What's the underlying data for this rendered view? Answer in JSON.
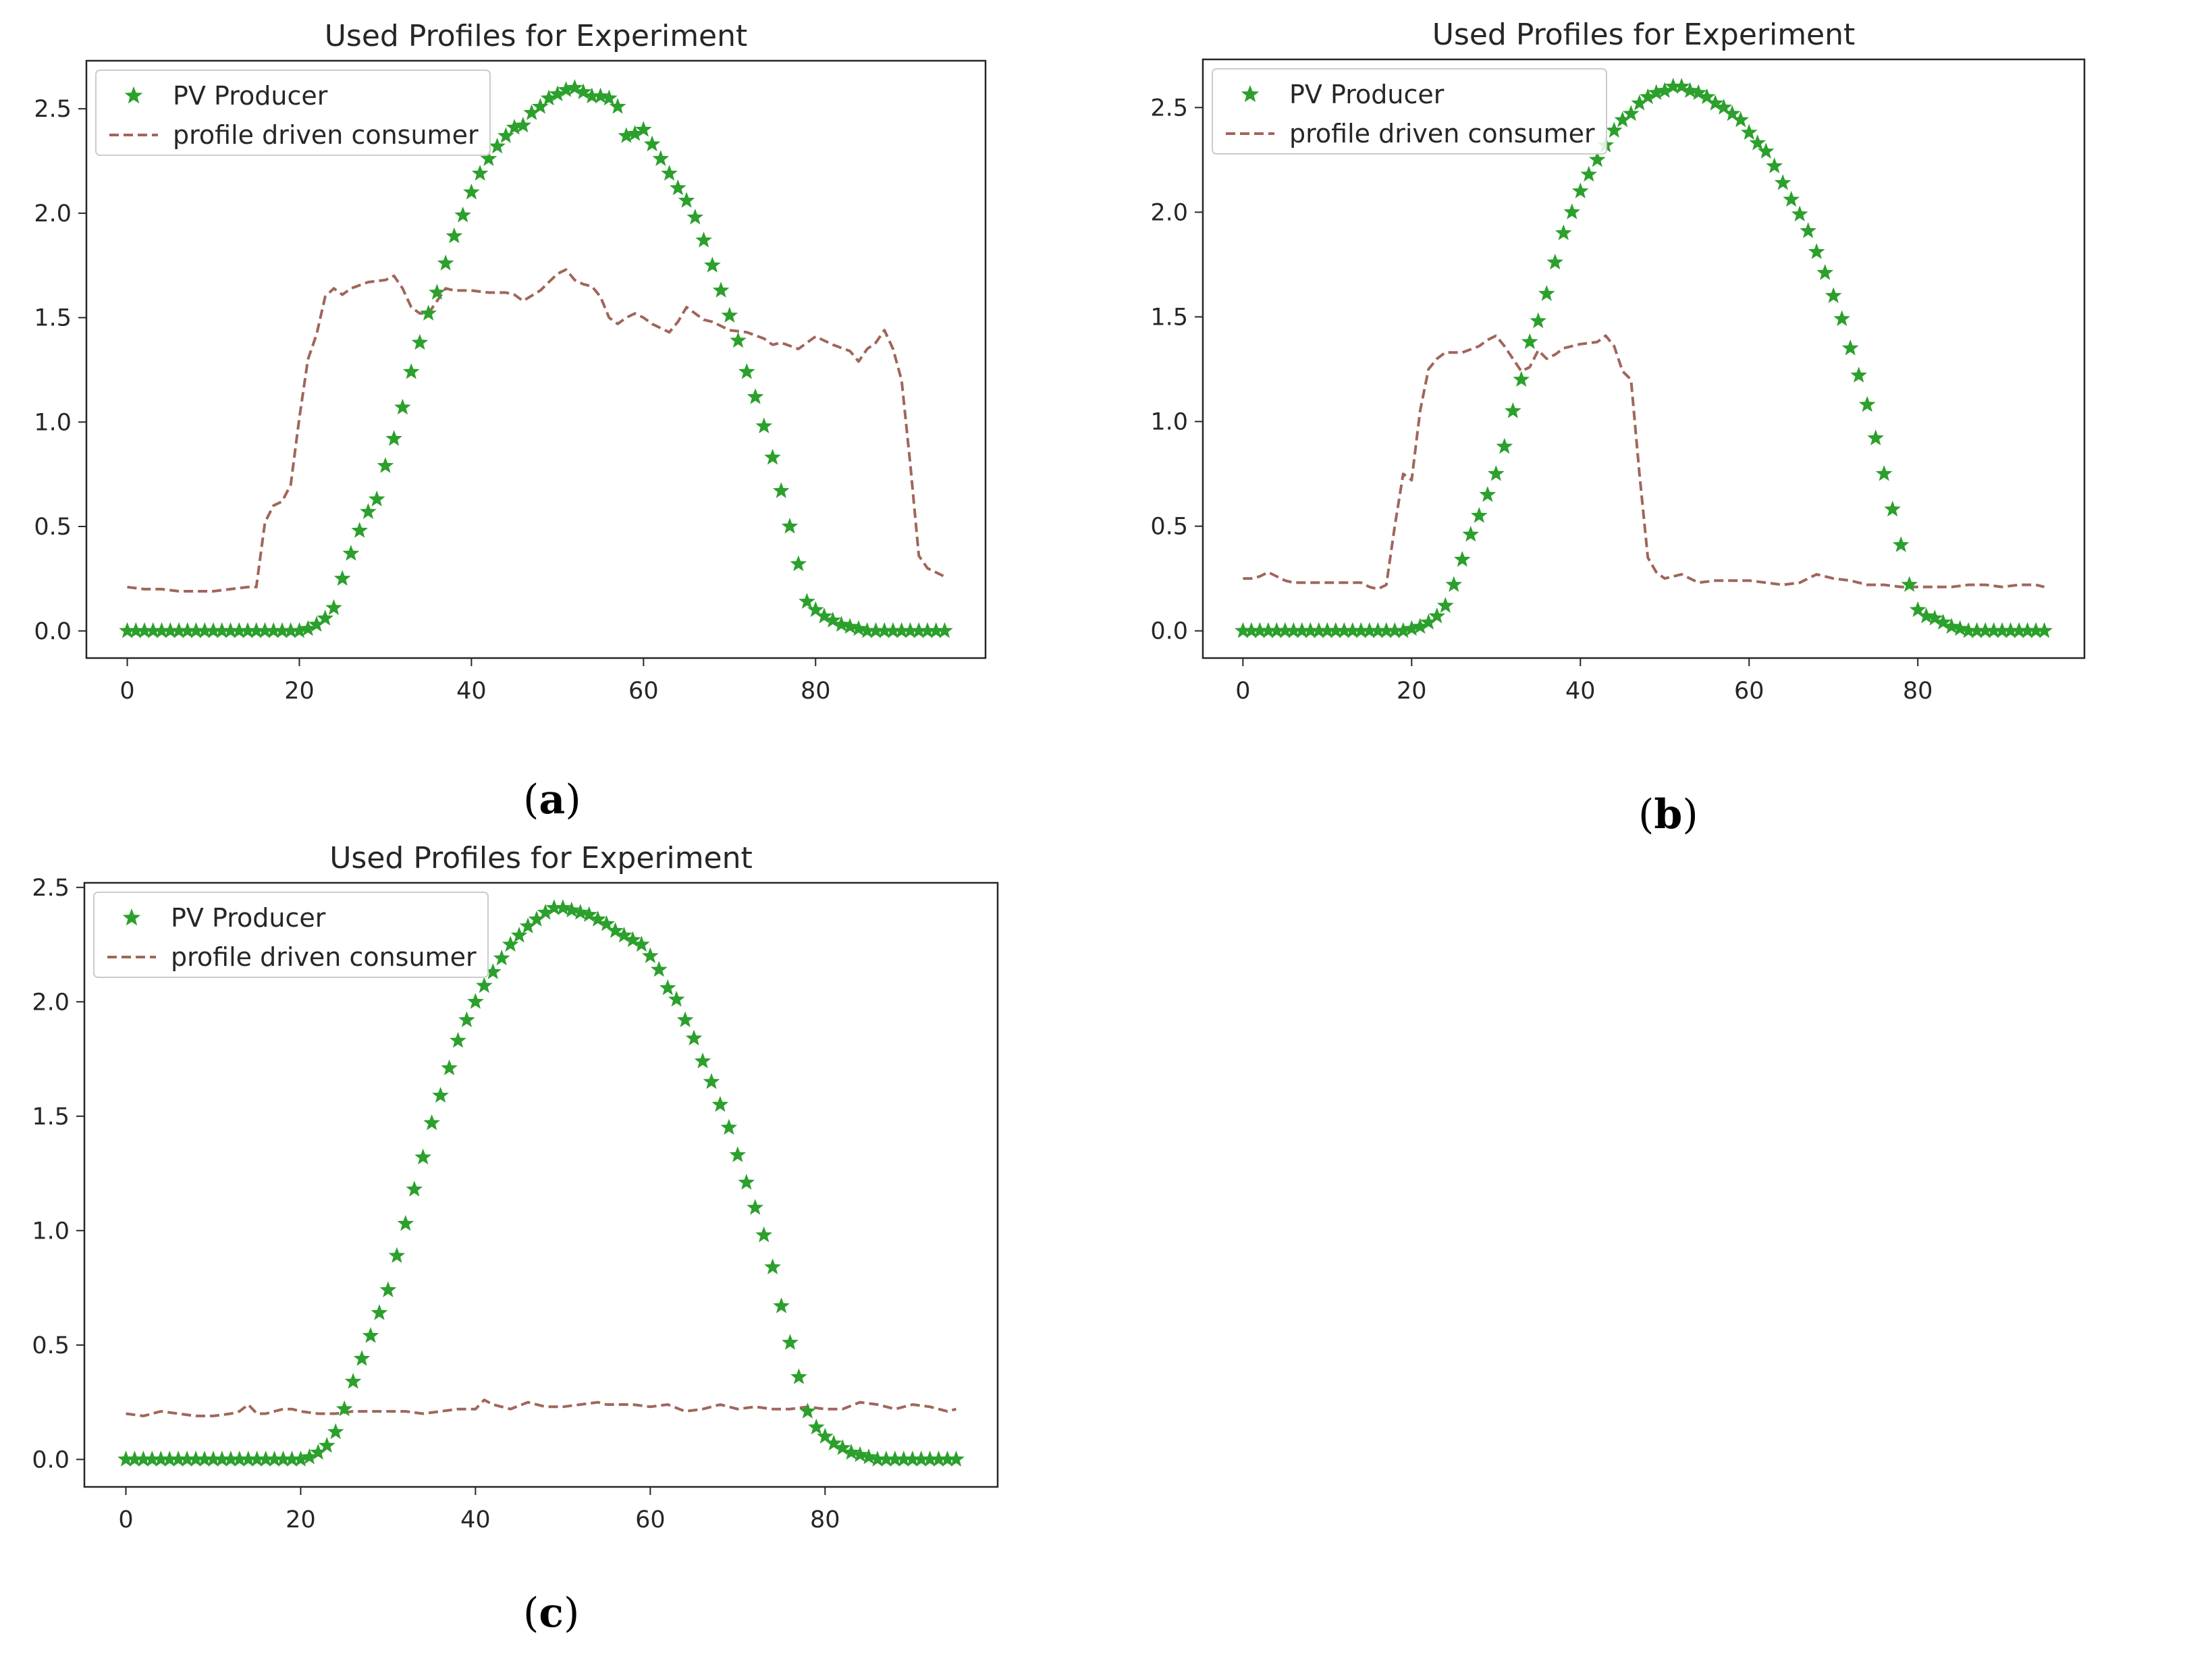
{
  "colors": {
    "pv": "#2ca02c",
    "consumer": "#a0665a",
    "axes": "#262626"
  },
  "chart_data": [
    {
      "type": "line",
      "panel": "a",
      "caption": "a",
      "title": "Used Profiles for Experiment",
      "xlabel": "",
      "ylabel": "",
      "xlim": [
        -4.75,
        99.75
      ],
      "ylim": [
        -0.13,
        2.73
      ],
      "xticks": [
        0,
        20,
        40,
        60,
        80
      ],
      "yticks": [
        0.0,
        0.5,
        1.0,
        1.5,
        2.0,
        2.5
      ],
      "xtick_labels": [
        "0",
        "20",
        "40",
        "60",
        "80"
      ],
      "ytick_labels": [
        "0.0",
        "0.5",
        "1.0",
        "1.5",
        "2.0",
        "2.5"
      ],
      "legend_location": "upper left",
      "series": [
        {
          "name": "PV Producer",
          "style": "star-markers",
          "peak": 2.6,
          "x": [
            0,
            1,
            2,
            3,
            4,
            5,
            6,
            7,
            8,
            9,
            10,
            11,
            12,
            13,
            14,
            15,
            16,
            17,
            18,
            19,
            20,
            21,
            22,
            23,
            24,
            25,
            26,
            27,
            28,
            29,
            30,
            31,
            32,
            33,
            34,
            35,
            36,
            37,
            38,
            39,
            40,
            41,
            42,
            43,
            44,
            45,
            46,
            47,
            48,
            49,
            50,
            51,
            52,
            53,
            54,
            55,
            56,
            57,
            58,
            59,
            60,
            61,
            62,
            63,
            64,
            65,
            66,
            67,
            68,
            69,
            70,
            71,
            72,
            73,
            74,
            75,
            76,
            77,
            78,
            79,
            80,
            81,
            82,
            83,
            84,
            85,
            86,
            87,
            88,
            89,
            90,
            91,
            92,
            93,
            94,
            95
          ],
          "y": [
            0,
            0,
            0,
            0,
            0,
            0,
            0,
            0,
            0,
            0,
            0,
            0,
            0,
            0,
            0,
            0,
            0,
            0,
            0,
            0,
            0,
            0.01,
            0.03,
            0.06,
            0.11,
            0.25,
            0.37,
            0.48,
            0.57,
            0.63,
            0.79,
            0.92,
            1.07,
            1.24,
            1.38,
            1.52,
            1.62,
            1.76,
            1.89,
            1.99,
            2.1,
            2.19,
            2.26,
            2.32,
            2.37,
            2.41,
            2.42,
            2.48,
            2.51,
            2.55,
            2.57,
            2.59,
            2.6,
            2.58,
            2.56,
            2.56,
            2.55,
            2.51,
            2.37,
            2.38,
            2.4,
            2.33,
            2.26,
            2.19,
            2.12,
            2.06,
            1.98,
            1.87,
            1.75,
            1.63,
            1.51,
            1.39,
            1.24,
            1.12,
            0.98,
            0.83,
            0.67,
            0.5,
            0.32,
            0.14,
            0.1,
            0.07,
            0.05,
            0.03,
            0.02,
            0.01,
            0,
            0,
            0,
            0,
            0,
            0,
            0,
            0,
            0,
            0
          ]
        },
        {
          "name": "profile driven consumer",
          "style": "dashed",
          "x": [
            0,
            2,
            4,
            6,
            8,
            10,
            12,
            14,
            15,
            16,
            17,
            18,
            19,
            20,
            21,
            22,
            23,
            24,
            25,
            26,
            28,
            30,
            31,
            32,
            33,
            34,
            35,
            36,
            37,
            38,
            40,
            42,
            44,
            45,
            46,
            48,
            49,
            50,
            51,
            52,
            53,
            54,
            55,
            56,
            57,
            58,
            59,
            60,
            61,
            62,
            63,
            64,
            65,
            66,
            67,
            68,
            70,
            72,
            74,
            75,
            76,
            78,
            80,
            82,
            84,
            85,
            86,
            87,
            88,
            89,
            90,
            91,
            92,
            93,
            95
          ],
          "y": [
            0.21,
            0.2,
            0.2,
            0.19,
            0.19,
            0.19,
            0.2,
            0.21,
            0.21,
            0.52,
            0.6,
            0.62,
            0.7,
            1.02,
            1.3,
            1.42,
            1.6,
            1.64,
            1.61,
            1.64,
            1.67,
            1.68,
            1.7,
            1.64,
            1.55,
            1.52,
            1.52,
            1.58,
            1.64,
            1.63,
            1.63,
            1.62,
            1.62,
            1.61,
            1.58,
            1.63,
            1.67,
            1.71,
            1.73,
            1.68,
            1.66,
            1.65,
            1.6,
            1.5,
            1.47,
            1.5,
            1.52,
            1.5,
            1.47,
            1.45,
            1.43,
            1.48,
            1.55,
            1.52,
            1.49,
            1.48,
            1.44,
            1.43,
            1.4,
            1.37,
            1.38,
            1.35,
            1.41,
            1.37,
            1.34,
            1.29,
            1.35,
            1.38,
            1.44,
            1.35,
            1.2,
            0.8,
            0.36,
            0.3,
            0.26
          ]
        }
      ]
    },
    {
      "type": "line",
      "panel": "b",
      "caption": "b",
      "title": "Used Profiles for Experiment",
      "xlabel": "",
      "ylabel": "",
      "xlim": [
        -4.75,
        99.75
      ],
      "ylim": [
        -0.13,
        2.73
      ],
      "xticks": [
        0,
        20,
        40,
        60,
        80
      ],
      "yticks": [
        0.0,
        0.5,
        1.0,
        1.5,
        2.0,
        2.5
      ],
      "xtick_labels": [
        "0",
        "20",
        "40",
        "60",
        "80"
      ],
      "ytick_labels": [
        "0.0",
        "0.5",
        "1.0",
        "1.5",
        "2.0",
        "2.5"
      ],
      "legend_location": "upper left",
      "series": [
        {
          "name": "PV Producer",
          "style": "star-markers",
          "peak": 2.6,
          "x": [
            0,
            1,
            2,
            3,
            4,
            5,
            6,
            7,
            8,
            9,
            10,
            11,
            12,
            13,
            14,
            15,
            16,
            17,
            18,
            19,
            20,
            21,
            22,
            23,
            24,
            25,
            26,
            27,
            28,
            29,
            30,
            31,
            32,
            33,
            34,
            35,
            36,
            37,
            38,
            39,
            40,
            41,
            42,
            43,
            44,
            45,
            46,
            47,
            48,
            49,
            50,
            51,
            52,
            53,
            54,
            55,
            56,
            57,
            58,
            59,
            60,
            61,
            62,
            63,
            64,
            65,
            66,
            67,
            68,
            69,
            70,
            71,
            72,
            73,
            74,
            75,
            76,
            77,
            78,
            79,
            80,
            81,
            82,
            83,
            84,
            85,
            86,
            87,
            88,
            89,
            90,
            91,
            92,
            93,
            94,
            95
          ],
          "y": [
            0,
            0,
            0,
            0,
            0,
            0,
            0,
            0,
            0,
            0,
            0,
            0,
            0,
            0,
            0,
            0,
            0,
            0,
            0,
            0,
            0.01,
            0.02,
            0.04,
            0.07,
            0.12,
            0.22,
            0.34,
            0.46,
            0.55,
            0.65,
            0.75,
            0.88,
            1.05,
            1.2,
            1.38,
            1.48,
            1.61,
            1.76,
            1.9,
            2.0,
            2.1,
            2.18,
            2.25,
            2.32,
            2.39,
            2.44,
            2.47,
            2.52,
            2.55,
            2.57,
            2.58,
            2.6,
            2.6,
            2.58,
            2.57,
            2.55,
            2.52,
            2.5,
            2.47,
            2.44,
            2.38,
            2.33,
            2.29,
            2.22,
            2.14,
            2.06,
            1.99,
            1.91,
            1.81,
            1.71,
            1.6,
            1.49,
            1.35,
            1.22,
            1.08,
            0.92,
            0.75,
            0.58,
            0.41,
            0.22,
            0.1,
            0.07,
            0.06,
            0.04,
            0.02,
            0.01,
            0,
            0,
            0,
            0,
            0,
            0,
            0,
            0,
            0,
            0
          ]
        },
        {
          "name": "profile driven consumer",
          "style": "dashed",
          "x": [
            0,
            1,
            2,
            3,
            4,
            5,
            6,
            8,
            10,
            12,
            14,
            15,
            16,
            17,
            18,
            19,
            20,
            21,
            22,
            23,
            24,
            26,
            28,
            29,
            30,
            31,
            32,
            33,
            34,
            35,
            36,
            37,
            38,
            40,
            42,
            43,
            44,
            45,
            46,
            47,
            48,
            49,
            50,
            52,
            54,
            56,
            58,
            60,
            62,
            64,
            66,
            68,
            70,
            72,
            74,
            76,
            78,
            80,
            82,
            84,
            86,
            88,
            90,
            92,
            94,
            95
          ],
          "y": [
            0.25,
            0.25,
            0.26,
            0.28,
            0.26,
            0.24,
            0.23,
            0.23,
            0.23,
            0.23,
            0.23,
            0.21,
            0.2,
            0.22,
            0.5,
            0.75,
            0.72,
            1.05,
            1.25,
            1.3,
            1.33,
            1.33,
            1.36,
            1.39,
            1.41,
            1.36,
            1.3,
            1.24,
            1.26,
            1.34,
            1.3,
            1.32,
            1.35,
            1.37,
            1.38,
            1.41,
            1.36,
            1.24,
            1.2,
            0.75,
            0.35,
            0.28,
            0.25,
            0.27,
            0.23,
            0.24,
            0.24,
            0.24,
            0.23,
            0.22,
            0.23,
            0.27,
            0.25,
            0.24,
            0.22,
            0.22,
            0.21,
            0.21,
            0.21,
            0.21,
            0.22,
            0.22,
            0.21,
            0.22,
            0.22,
            0.21
          ]
        }
      ]
    },
    {
      "type": "line",
      "panel": "c",
      "caption": "c",
      "title": "Used Profiles for Experiment",
      "xlabel": "",
      "ylabel": "",
      "xlim": [
        -4.75,
        99.75
      ],
      "ylim": [
        -0.12,
        2.52
      ],
      "xticks": [
        0,
        20,
        40,
        60,
        80
      ],
      "yticks": [
        0.0,
        0.5,
        1.0,
        1.5,
        2.0,
        2.5
      ],
      "xtick_labels": [
        "0",
        "20",
        "40",
        "60",
        "80"
      ],
      "ytick_labels": [
        "0.0",
        "0.5",
        "1.0",
        "1.5",
        "2.0",
        "2.5"
      ],
      "legend_location": "upper left",
      "series": [
        {
          "name": "PV Producer",
          "style": "star-markers",
          "peak": 2.41,
          "x": [
            0,
            1,
            2,
            3,
            4,
            5,
            6,
            7,
            8,
            9,
            10,
            11,
            12,
            13,
            14,
            15,
            16,
            17,
            18,
            19,
            20,
            21,
            22,
            23,
            24,
            25,
            26,
            27,
            28,
            29,
            30,
            31,
            32,
            33,
            34,
            35,
            36,
            37,
            38,
            39,
            40,
            41,
            42,
            43,
            44,
            45,
            46,
            47,
            48,
            49,
            50,
            51,
            52,
            53,
            54,
            55,
            56,
            57,
            58,
            59,
            60,
            61,
            62,
            63,
            64,
            65,
            66,
            67,
            68,
            69,
            70,
            71,
            72,
            73,
            74,
            75,
            76,
            77,
            78,
            79,
            80,
            81,
            82,
            83,
            84,
            85,
            86,
            87,
            88,
            89,
            90,
            91,
            92,
            93,
            94,
            95
          ],
          "y": [
            0,
            0,
            0,
            0,
            0,
            0,
            0,
            0,
            0,
            0,
            0,
            0,
            0,
            0,
            0,
            0,
            0,
            0,
            0,
            0,
            0,
            0.01,
            0.03,
            0.06,
            0.12,
            0.22,
            0.34,
            0.44,
            0.54,
            0.64,
            0.74,
            0.89,
            1.03,
            1.18,
            1.32,
            1.47,
            1.59,
            1.71,
            1.83,
            1.92,
            2.0,
            2.07,
            2.13,
            2.19,
            2.25,
            2.29,
            2.33,
            2.36,
            2.39,
            2.41,
            2.41,
            2.4,
            2.39,
            2.38,
            2.36,
            2.34,
            2.31,
            2.29,
            2.27,
            2.25,
            2.2,
            2.14,
            2.06,
            2.01,
            1.92,
            1.84,
            1.74,
            1.65,
            1.55,
            1.45,
            1.33,
            1.21,
            1.1,
            0.98,
            0.84,
            0.67,
            0.51,
            0.36,
            0.21,
            0.14,
            0.1,
            0.07,
            0.05,
            0.03,
            0.02,
            0.01,
            0,
            0,
            0,
            0,
            0,
            0,
            0,
            0,
            0,
            0
          ]
        },
        {
          "name": "profile driven consumer",
          "style": "dashed",
          "x": [
            0,
            2,
            4,
            6,
            8,
            10,
            12,
            13,
            14,
            15,
            16,
            18,
            19,
            20,
            22,
            24,
            26,
            28,
            30,
            32,
            34,
            36,
            38,
            40,
            41,
            42,
            44,
            46,
            48,
            50,
            52,
            54,
            55,
            56,
            58,
            60,
            62,
            64,
            66,
            68,
            70,
            72,
            74,
            76,
            78,
            80,
            82,
            84,
            86,
            88,
            90,
            92,
            94,
            95
          ],
          "y": [
            0.2,
            0.19,
            0.21,
            0.2,
            0.19,
            0.19,
            0.2,
            0.21,
            0.24,
            0.2,
            0.2,
            0.22,
            0.22,
            0.21,
            0.2,
            0.2,
            0.21,
            0.21,
            0.21,
            0.21,
            0.2,
            0.21,
            0.22,
            0.22,
            0.26,
            0.24,
            0.22,
            0.25,
            0.23,
            0.23,
            0.24,
            0.25,
            0.24,
            0.24,
            0.24,
            0.23,
            0.24,
            0.21,
            0.22,
            0.24,
            0.22,
            0.23,
            0.22,
            0.22,
            0.23,
            0.22,
            0.22,
            0.25,
            0.24,
            0.22,
            0.24,
            0.23,
            0.21,
            0.22
          ]
        }
      ]
    }
  ]
}
